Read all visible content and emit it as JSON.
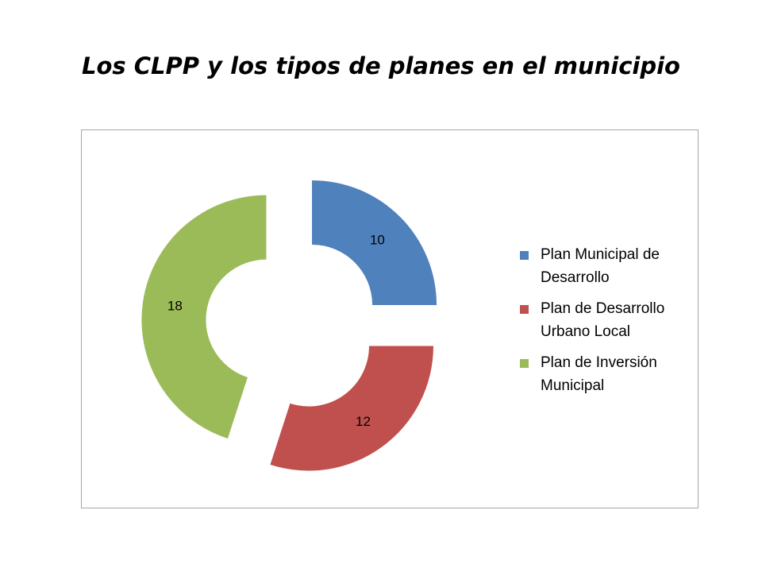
{
  "page": {
    "title": "Los CLPP y los tipos de planes en el municipio"
  },
  "chart_data": {
    "type": "pie",
    "variant": "donut-exploded",
    "title": "Los CLPP y los tipos de planes en el municipio",
    "categories": [
      "Plan Municipal de Desarrollo",
      "Plan de Desarrollo Urbano Local",
      "Plan de Inversión Municipal"
    ],
    "values": [
      10,
      12,
      18
    ],
    "data_labels": [
      "10",
      "12",
      "18"
    ],
    "colors": [
      "#4f81bd",
      "#c0504d",
      "#9bbb59"
    ],
    "legend": "right"
  }
}
